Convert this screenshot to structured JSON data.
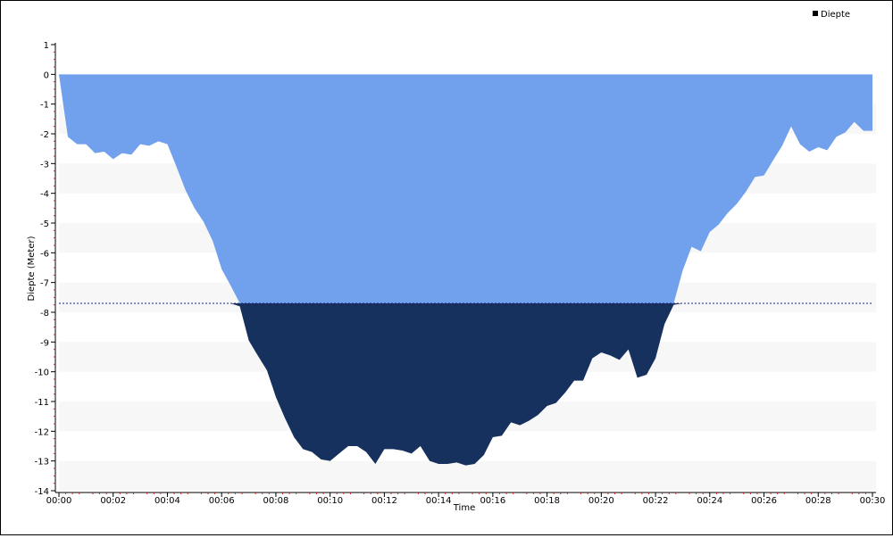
{
  "chart_data": {
    "type": "area",
    "title": "",
    "xlabel": "Time",
    "ylabel": "Diepte (Meter)",
    "legend": {
      "entries": [
        "Diepte"
      ],
      "placement": "top-right"
    },
    "x_ticks": [
      "00:00",
      "00:02",
      "00:04",
      "00:06",
      "00:08",
      "00:10",
      "00:12",
      "00:14",
      "00:16",
      "00:18",
      "00:20",
      "00:22",
      "00:24",
      "00:26",
      "00:28",
      "00:30"
    ],
    "y_ticks": [
      1,
      0,
      -1,
      -2,
      -3,
      -4,
      -5,
      -6,
      -7,
      -8,
      -9,
      -10,
      -11,
      -12,
      -13,
      -14
    ],
    "xlim_minutes": [
      0,
      30
    ],
    "ylim": [
      -14,
      1
    ],
    "grid": "alternating horizontal bands",
    "reference_line": {
      "y": -7.7,
      "style": "dashed"
    },
    "colors": {
      "above_reference": "#71a0ec",
      "below_reference": "#17315f",
      "band": "#f7f7f7",
      "reference_line": "#1a237e"
    },
    "series": [
      {
        "name": "Diepte",
        "x_minutes": [
          0,
          0.33,
          0.67,
          1,
          1.33,
          1.67,
          2,
          2.33,
          2.67,
          3,
          3.33,
          3.67,
          4,
          4.33,
          4.67,
          5,
          5.33,
          5.67,
          6,
          6.33,
          6.67,
          7,
          7.33,
          7.67,
          8,
          8.33,
          8.67,
          9,
          9.33,
          9.67,
          10,
          10.33,
          10.67,
          11,
          11.33,
          11.67,
          12,
          12.33,
          12.67,
          13,
          13.33,
          13.67,
          14,
          14.33,
          14.67,
          15,
          15.33,
          15.67,
          16,
          16.33,
          16.67,
          17,
          17.33,
          17.67,
          18,
          18.33,
          18.67,
          19,
          19.33,
          19.67,
          20,
          20.33,
          20.67,
          21,
          21.33,
          21.67,
          22,
          22.33,
          22.67,
          23,
          23.33,
          23.67,
          24,
          24.33,
          24.67,
          25,
          25.33,
          25.67,
          26,
          26.33,
          26.67,
          27,
          27.33,
          27.67,
          28,
          28.33,
          28.67,
          29,
          29.33,
          29.67,
          30
        ],
        "values": [
          0,
          -2.1,
          -2.35,
          -2.35,
          -2.65,
          -2.6,
          -2.85,
          -2.65,
          -2.7,
          -2.35,
          -2.4,
          -2.25,
          -2.35,
          -3.1,
          -3.9,
          -4.5,
          -4.95,
          -5.6,
          -6.55,
          -7.1,
          -7.8,
          -8.95,
          -9.45,
          -9.95,
          -10.85,
          -11.55,
          -12.2,
          -12.6,
          -12.7,
          -12.95,
          -13.0,
          -12.75,
          -12.5,
          -12.5,
          -12.7,
          -13.1,
          -12.6,
          -12.6,
          -12.65,
          -12.75,
          -12.5,
          -13.0,
          -13.1,
          -13.1,
          -13.05,
          -13.15,
          -13.1,
          -12.8,
          -12.2,
          -12.15,
          -11.7,
          -11.8,
          -11.65,
          -11.45,
          -11.15,
          -11.05,
          -10.7,
          -10.3,
          -10.3,
          -9.55,
          -9.35,
          -9.45,
          -9.6,
          -9.25,
          -10.2,
          -10.1,
          -9.55,
          -8.4,
          -7.75,
          -6.6,
          -5.8,
          -5.95,
          -5.3,
          -5.05,
          -4.65,
          -4.35,
          -3.95,
          -3.45,
          -3.4,
          -2.9,
          -2.4,
          -1.75,
          -2.35,
          -2.6,
          -2.45,
          -2.55,
          -2.1,
          -1.95,
          -1.6,
          -1.9,
          -1.9
        ]
      }
    ]
  }
}
